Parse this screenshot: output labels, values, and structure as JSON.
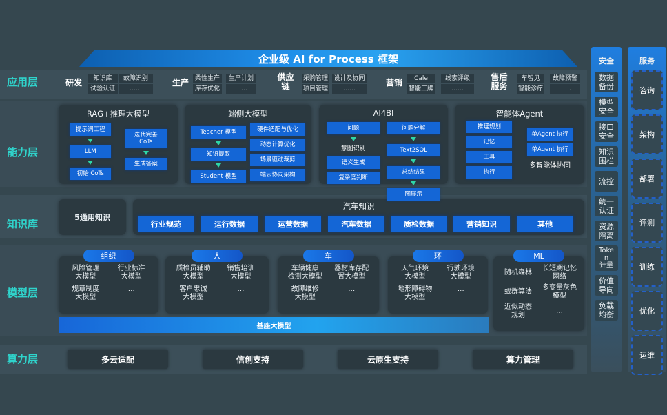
{
  "title": "企业级 AI for Process 框架",
  "layers": [
    "应用层",
    "能力层",
    "知识库",
    "模型层",
    "算力层"
  ],
  "app": [
    {
      "name": "研发",
      "cells": [
        [
          "知识库",
          "试验认证"
        ],
        [
          "故障识别",
          "……"
        ]
      ]
    },
    {
      "name": "生产",
      "cells": [
        [
          "柔性生产",
          "库存优化"
        ],
        [
          "生产计划",
          "……"
        ]
      ]
    },
    {
      "name": "供应链",
      "cells": [
        [
          "采购管理",
          "项目管理"
        ],
        [
          "设计及协同",
          "……"
        ]
      ]
    },
    {
      "name": "营销",
      "cells": [
        [
          "Cale",
          "智能工牌"
        ],
        [
          "线索评级",
          "……"
        ]
      ]
    },
    {
      "name": "售后服务",
      "cells": [
        [
          "车智见",
          "智能诊疗"
        ],
        [
          "故障预警",
          "……"
        ]
      ]
    }
  ],
  "capability": [
    {
      "title": "RAG+推理大模型",
      "cols": [
        [
          {
            "t": "提示词工程",
            "k": "box",
            "a": 1
          },
          {
            "t": "LLM",
            "k": "box",
            "a": 1
          },
          {
            "t": "初始 CoTs",
            "k": "box"
          }
        ],
        [
          {
            "t": "迭代完善 CoTs",
            "k": "box",
            "a": 1
          },
          {
            "t": "生成答案",
            "k": "box"
          }
        ]
      ]
    },
    {
      "title": "端侧大模型",
      "cols": [
        [
          {
            "t": "Teacher 模型",
            "k": "box",
            "a": 1
          },
          {
            "t": "知识提取",
            "k": "box",
            "a": 1
          },
          {
            "t": "Student 模型",
            "k": "box"
          }
        ],
        [
          {
            "t": "硬件适配与优化",
            "k": "box"
          },
          {
            "t": "动态计算优化",
            "k": "box"
          },
          {
            "t": "场景驱动裁剪",
            "k": "box"
          },
          {
            "t": "端云协同架构",
            "k": "box"
          }
        ]
      ]
    },
    {
      "title": "AI4BI",
      "cols": [
        [
          {
            "t": "问题",
            "k": "box",
            "a": 1
          },
          {
            "t": "意图识别",
            "k": "text"
          },
          {
            "t": "语义生成",
            "k": "box"
          },
          {
            "t": "复杂度判断",
            "k": "box"
          }
        ],
        [
          {
            "t": "问题分解",
            "k": "box",
            "a": 1
          },
          {
            "t": "Text2SQL",
            "k": "box",
            "a": 1
          },
          {
            "t": "总结结果",
            "k": "box",
            "a": 1
          },
          {
            "t": "图展示",
            "k": "box"
          }
        ]
      ]
    },
    {
      "title": "智能体Agent",
      "cols": [
        [
          {
            "t": "推理规划",
            "k": "box"
          },
          {
            "t": "记忆",
            "k": "box"
          },
          {
            "t": "工具",
            "k": "box"
          },
          {
            "t": "执行",
            "k": "box"
          }
        ],
        [
          {
            "t": "单Agent 执行",
            "k": "box"
          },
          {
            "t": "单Agent 执行",
            "k": "box"
          },
          {
            "t": "多智能体协同",
            "k": "text"
          }
        ]
      ]
    }
  ],
  "knowledge": {
    "general": "5通用知识",
    "title": "汽车知识",
    "items": [
      "行业规范",
      "运行数据",
      "运营数据",
      "汽车数据",
      "质检数据",
      "营销知识",
      "其他"
    ]
  },
  "models": [
    {
      "tag": "组织",
      "items": [
        "风险管理\n大模型",
        "行业标准\n大模型",
        "规章制度\n大模型",
        "…"
      ]
    },
    {
      "tag": "人",
      "items": [
        "质检员辅助\n大模型",
        "销售培训\n大模型",
        "客户忠诚\n大模型",
        "…"
      ]
    },
    {
      "tag": "车",
      "items": [
        "车辆健康\n检测大模型",
        "器材库存配\n置大模型",
        "故障维修\n大模型",
        "…"
      ]
    },
    {
      "tag": "环",
      "items": [
        "天气环境\n大模型",
        "行驶环境\n大模型",
        "地形障碍物\n大模型",
        "…"
      ]
    },
    {
      "tag": "ML",
      "items": [
        "随机森林",
        "长短期记忆\n网络",
        "蚁群算法",
        "多变量灰色\n模型",
        "近似动态\n规划",
        "…"
      ]
    }
  ],
  "base_model": "基座大模型",
  "compute": [
    "多云适配",
    "信创支持",
    "云原生支持",
    "算力管理"
  ],
  "security": {
    "title": "安全",
    "items": [
      "数据\n备份",
      "模型\n安全",
      "接口\n安全",
      "知识\n围栏",
      "流控",
      "统一\n认证",
      "资源\n隔离",
      "Toke\nn\n计量",
      "价值\n导向",
      "负载\n均衡"
    ]
  },
  "service": {
    "title": "服务",
    "items": [
      "咨询",
      "架构",
      "部署",
      "评测",
      "训练",
      "优化",
      "运维"
    ]
  }
}
